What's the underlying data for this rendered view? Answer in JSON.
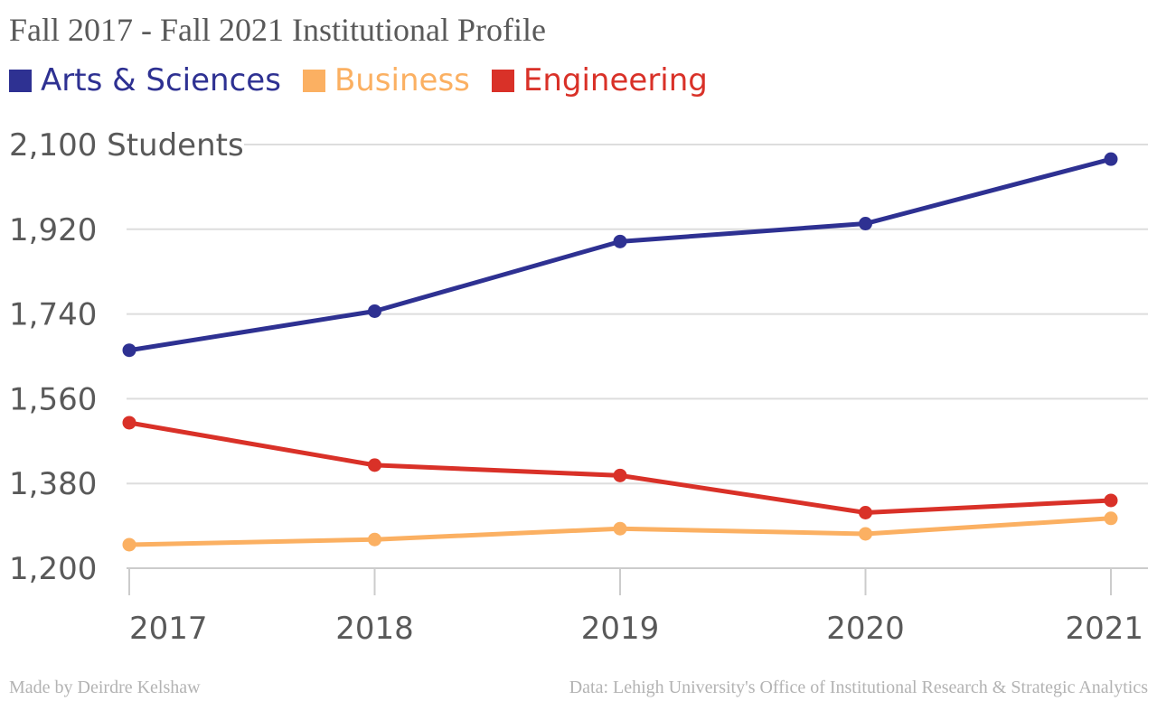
{
  "title": "Fall 2017 - Fall 2021 Institutional Profile",
  "footer": {
    "credit": "Made by Deirdre Kelshaw",
    "source": "Data: Lehigh University's Office of Institutional Research & Strategic Analytics"
  },
  "chart_data": {
    "type": "line",
    "title": "Fall 2017 - Fall 2021 Institutional Profile",
    "x": [
      "2017",
      "2018",
      "2019",
      "2020",
      "2021"
    ],
    "ylim": [
      1200,
      2100
    ],
    "yticks": [
      1200,
      1380,
      1560,
      1740,
      1920,
      2100
    ],
    "ytick_labels": [
      "1,200",
      "1,380",
      "1,560",
      "1,740",
      "1,920",
      "2,100 Students"
    ],
    "grid": true,
    "legend_position": "top-left",
    "series": [
      {
        "name": "Arts & Sciences",
        "color": "#2e3192",
        "values": [
          1663,
          1746,
          1894,
          1932,
          2069
        ]
      },
      {
        "name": "Business",
        "color": "#fbb062",
        "values": [
          1250,
          1261,
          1284,
          1273,
          1306
        ]
      },
      {
        "name": "Engineering",
        "color": "#d93128",
        "values": [
          1509,
          1419,
          1397,
          1318,
          1344
        ]
      }
    ]
  }
}
